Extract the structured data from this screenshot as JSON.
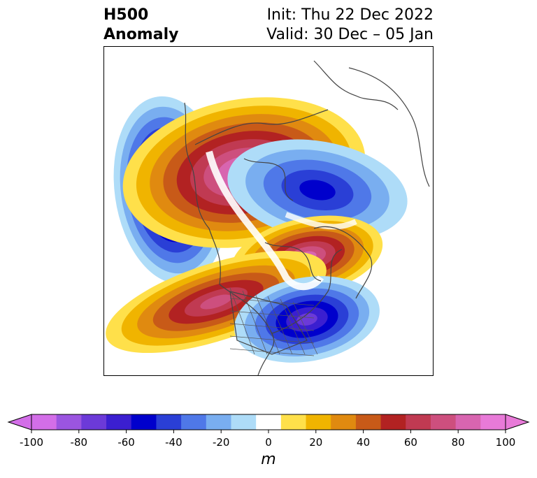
{
  "title": {
    "left_line1": "H500",
    "left_line2": "Anomaly",
    "init": "Init: Thu 22 Dec 2022",
    "valid": "Valid: 30 Dec – 05 Jan"
  },
  "colorbar": {
    "unit": "m",
    "ticks": [
      "-100",
      "-80",
      "-60",
      "-40",
      "-20",
      "0",
      "20",
      "40",
      "60",
      "80",
      "100"
    ],
    "colors": [
      "#d36ee8",
      "#9b55e0",
      "#6c3ad8",
      "#3b1fd0",
      "#0000cc",
      "#2a3fd6",
      "#4f78e8",
      "#79aef0",
      "#aedcf8",
      "#ffffff",
      "#ffe04a",
      "#f0b400",
      "#e08a10",
      "#c85a18",
      "#b22222",
      "#c03a52",
      "#cd4f7e",
      "#d865b0",
      "#e87ad8"
    ],
    "under_color": "#d36ee8",
    "over_color": "#e87ad8"
  },
  "map": {
    "content": "500 hPa geopotential height anomaly, polar stereographic view of Northern Hemisphere centered on North America",
    "negative_color_scale": [
      "#aedcf8",
      "#79aef0",
      "#4f78e8",
      "#2a3fd6",
      "#0000cc",
      "#3b1fd0",
      "#6c3ad8",
      "#9b55e0",
      "#d36ee8"
    ],
    "positive_color_scale": [
      "#ffe04a",
      "#f0b400",
      "#e08a10",
      "#c85a18",
      "#b22222",
      "#c03a52",
      "#cd4f7e",
      "#d865b0",
      "#e87ad8"
    ]
  }
}
